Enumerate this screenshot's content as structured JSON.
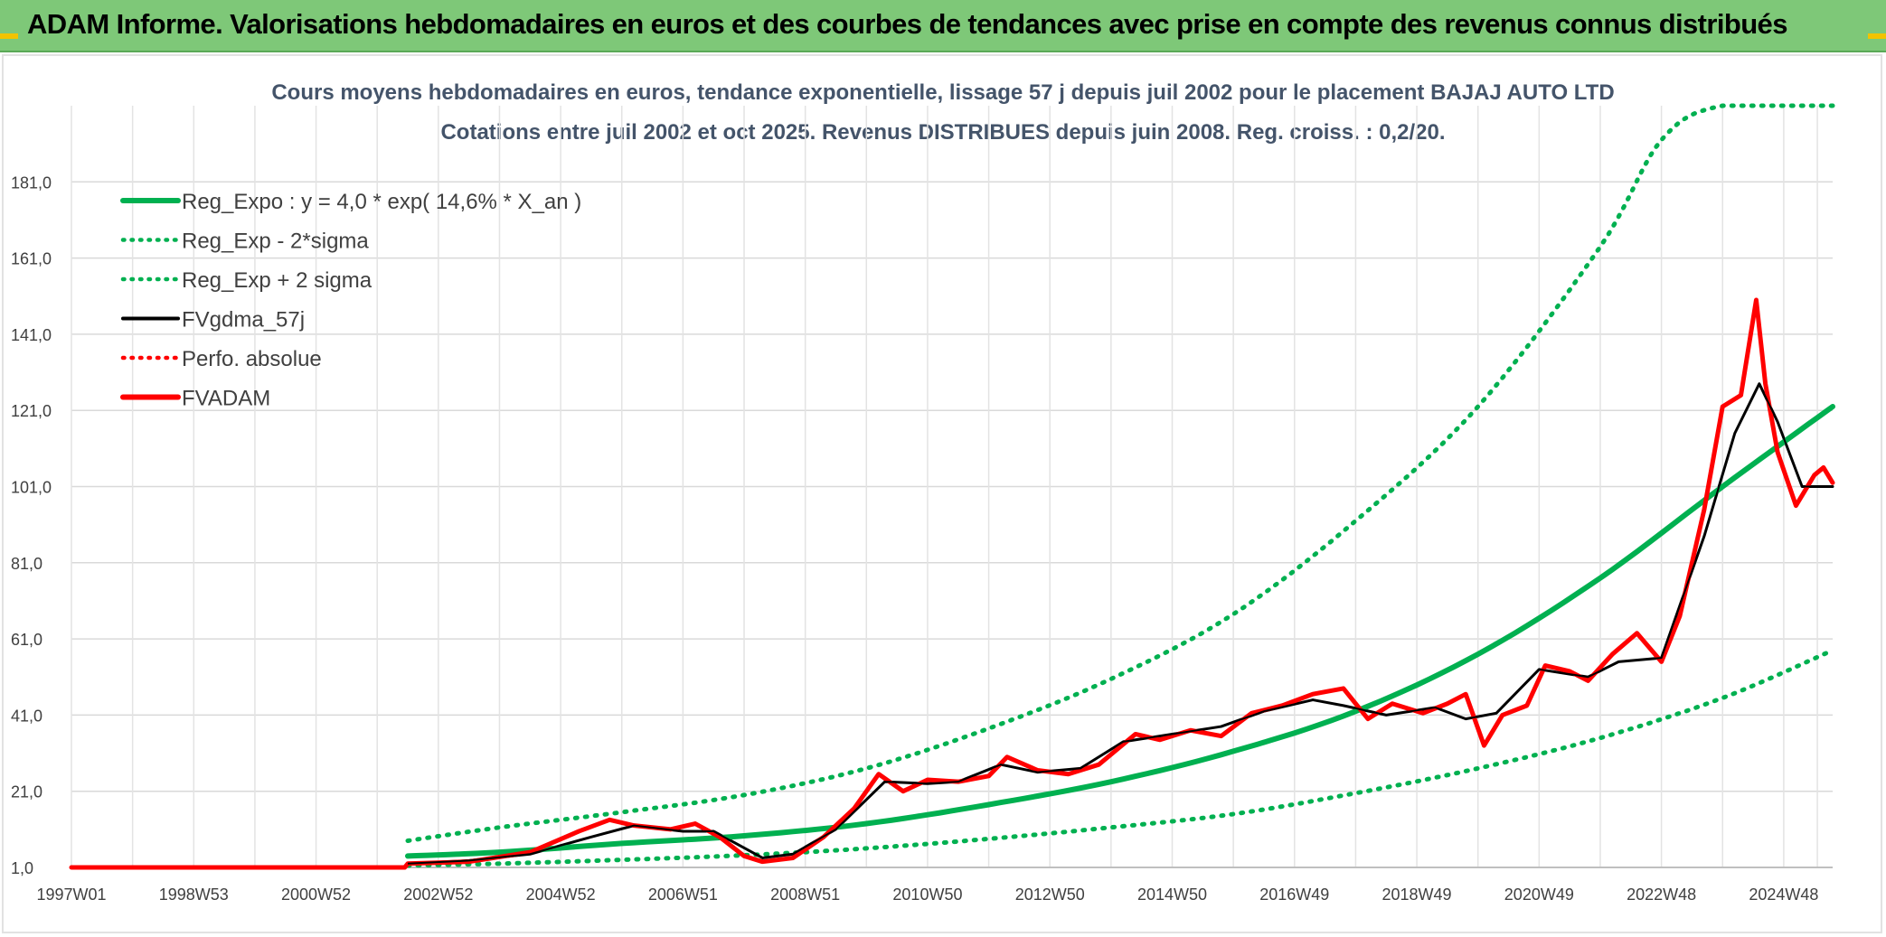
{
  "header": {
    "title": "ADAM Informe. Valorisations hebdomadaires en euros et des courbes de tendances avec prise en compte des revenus connus distribués",
    "bg_color": "#7ec878",
    "corner_color": "#f2c300"
  },
  "chart_data": {
    "type": "line",
    "title_line1": "Cours moyens hebdomadaires en euros, tendance exponentielle, lissage 57 j depuis juil 2002 pour le placement BAJAJ AUTO LTD",
    "title_line2": "Cotations entre juil 2002 et oct 2025. Revenus DISTRIBUES depuis juin 2008. Reg. croiss. : 0,2/20.",
    "x_tick_labels": [
      "1997W01",
      "1998W53",
      "2000W52",
      "2002W52",
      "2004W52",
      "2006W51",
      "2008W51",
      "2010W50",
      "2012W50",
      "2014W50",
      "2016W49",
      "2018W49",
      "2020W49",
      "2022W48",
      "2024W48"
    ],
    "x_ticks_years": [
      1997.0,
      1999.0,
      2001.0,
      2003.0,
      2005.0,
      2007.0,
      2009.0,
      2011.0,
      2013.0,
      2015.0,
      2017.0,
      2019.0,
      2021.0,
      2023.0,
      2025.0
    ],
    "xlim": [
      1997.0,
      2025.8
    ],
    "ylim": [
      1.0,
      201.0
    ],
    "y_ticks": [
      1.0,
      21.0,
      41.0,
      61.0,
      81.0,
      101.0,
      121.0,
      141.0,
      161.0,
      181.0
    ],
    "y_tick_labels": [
      "1,0",
      "21,0",
      "41,0",
      "61,0",
      "81,0",
      "101,0",
      "121,0",
      "141,0",
      "161,0",
      "181,0"
    ],
    "legend": [
      {
        "label": "Reg_Expo : y = 4,0 * exp( 14,6% *  X_an )",
        "color": "#00b050",
        "style": "solid-thick"
      },
      {
        "label": "Reg_Exp - 2*sigma",
        "color": "#00b050",
        "style": "dotted"
      },
      {
        "label": "Reg_Exp + 2 sigma",
        "color": "#00b050",
        "style": "dotted"
      },
      {
        "label": "FVgdma_57j",
        "color": "#000000",
        "style": "solid"
      },
      {
        "label": "Perfo. absolue",
        "color": "#ff0000",
        "style": "dotted"
      },
      {
        "label": "FVADAM",
        "color": "#ff0000",
        "style": "solid-thick"
      }
    ],
    "series": [
      {
        "name": "Reg_Expo",
        "color": "#00b050",
        "x": [
          2002.5,
          2004,
          2006,
          2008,
          2010,
          2012,
          2014,
          2016,
          2018,
          2020,
          2022,
          2024,
          2025.8
        ],
        "y": [
          4.0,
          5.0,
          7.3,
          9.3,
          12.5,
          17.5,
          23.5,
          31.5,
          42.0,
          57.0,
          77.0,
          101.0,
          122.0
        ]
      },
      {
        "name": "Reg_Exp - 2*sigma",
        "color": "#00b050",
        "x": [
          2002.5,
          2004,
          2006,
          2008,
          2010,
          2012,
          2014,
          2016,
          2018,
          2020,
          2022,
          2024,
          2025.8
        ],
        "y": [
          1.5,
          2.0,
          3.0,
          4.2,
          6.0,
          8.5,
          11.5,
          15.0,
          20.5,
          27.0,
          35.0,
          45.5,
          58.0
        ]
      },
      {
        "name": "Reg_Exp + 2 sigma",
        "color": "#00b050",
        "x": [
          2002.5,
          2004,
          2006,
          2008,
          2010,
          2012,
          2014,
          2016,
          2018,
          2020,
          2022,
          2023,
          2024,
          2025.8
        ],
        "y": [
          8.0,
          11.5,
          15.5,
          20.0,
          27.0,
          37.5,
          50.5,
          67.5,
          92.0,
          122.0,
          164.0,
          192.0,
          201.0,
          201.0
        ]
      },
      {
        "name": "FVgdma_57j",
        "color": "#000000",
        "x": [
          2002.5,
          2003.5,
          2004.5,
          2005.5,
          2006.2,
          2007.0,
          2007.5,
          2008.3,
          2008.8,
          2009.5,
          2010.3,
          2011.0,
          2011.5,
          2012.2,
          2012.8,
          2013.5,
          2014.2,
          2015.0,
          2015.8,
          2016.5,
          2017.3,
          2017.8,
          2018.5,
          2019.3,
          2019.8,
          2020.3,
          2021.0,
          2021.8,
          2022.3,
          2023.0,
          2023.7,
          2024.2,
          2024.6,
          2024.9,
          2025.3,
          2025.8
        ],
        "y": [
          2.0,
          2.8,
          4.5,
          9.0,
          12.0,
          10.5,
          10.5,
          3.5,
          4.5,
          11.0,
          23.5,
          23.0,
          23.5,
          28.0,
          26.0,
          27.0,
          34.0,
          36.0,
          38.0,
          42.0,
          45.0,
          43.5,
          41.0,
          43.0,
          40.0,
          41.5,
          53.0,
          51.0,
          55.0,
          56.0,
          88.0,
          115.0,
          128.0,
          118.0,
          101.0,
          101.0
        ]
      },
      {
        "name": "FVADAM",
        "color": "#ff0000",
        "x": [
          1997.0,
          2002.45,
          2002.5,
          2003.5,
          2004.5,
          2005.3,
          2005.8,
          2006.2,
          2006.8,
          2007.2,
          2007.6,
          2008.0,
          2008.3,
          2008.8,
          2009.3,
          2009.8,
          2010.2,
          2010.6,
          2011.0,
          2011.5,
          2012.0,
          2012.3,
          2012.8,
          2013.3,
          2013.8,
          2014.4,
          2014.8,
          2015.3,
          2015.8,
          2016.3,
          2016.8,
          2017.3,
          2017.8,
          2018.2,
          2018.6,
          2019.1,
          2019.5,
          2019.8,
          2020.1,
          2020.4,
          2020.8,
          2021.1,
          2021.5,
          2021.8,
          2022.2,
          2022.6,
          2023.0,
          2023.3,
          2023.7,
          2024.0,
          2024.3,
          2024.55,
          2024.7,
          2024.9,
          2025.2,
          2025.35,
          2025.5,
          2025.65,
          2025.8
        ],
        "y": [
          1.0,
          1.0,
          2.0,
          2.5,
          5.0,
          10.5,
          13.5,
          12.0,
          11.0,
          12.5,
          9.0,
          4.0,
          2.5,
          3.5,
          9.0,
          16.5,
          25.5,
          21.0,
          24.0,
          23.5,
          25.0,
          30.0,
          26.5,
          25.5,
          28.0,
          36.0,
          34.5,
          37.0,
          35.5,
          41.5,
          43.5,
          46.5,
          48.0,
          40.0,
          44.0,
          41.5,
          44.0,
          46.5,
          33.0,
          41.0,
          43.5,
          54.0,
          52.5,
          50.0,
          57.0,
          62.5,
          55.0,
          67.0,
          95.0,
          122.0,
          125.0,
          150.0,
          128.0,
          110.0,
          96.0,
          100.0,
          104.0,
          106.0,
          102.0
        ]
      }
    ]
  }
}
